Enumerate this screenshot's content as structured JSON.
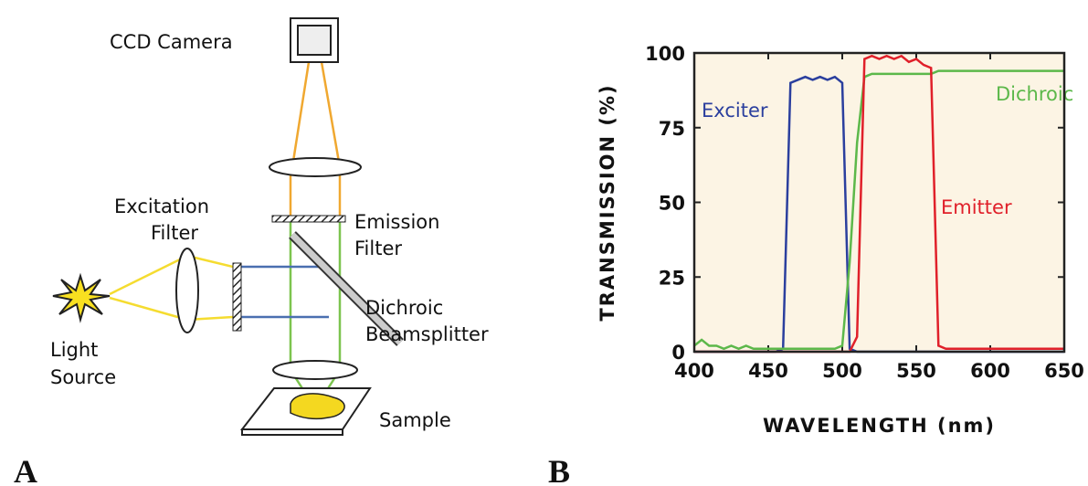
{
  "diagram": {
    "camera_label": "CCD Camera",
    "excitation_filter_label": [
      "Excitation",
      "Filter"
    ],
    "emission_filter_label": [
      "Emission",
      "Filter"
    ],
    "beamsplitter_label": [
      "Dichroic",
      "Beamsplitter"
    ],
    "light_source_label": [
      "Light",
      "Source"
    ],
    "sample_label": "Sample",
    "panel_label": "A"
  },
  "chart_data": {
    "type": "line",
    "panel_label": "B",
    "x_label": "WAVELENGTH (nm)",
    "y_label": "TRANSMISSION (%)",
    "x": [
      400,
      405,
      410,
      415,
      420,
      425,
      430,
      435,
      440,
      445,
      450,
      455,
      460,
      465,
      470,
      475,
      480,
      485,
      490,
      495,
      500,
      505,
      510,
      515,
      520,
      525,
      530,
      535,
      540,
      545,
      550,
      555,
      560,
      565,
      570,
      575,
      580,
      585,
      590,
      595,
      600,
      605,
      610,
      615,
      620,
      625,
      630,
      635,
      640,
      645,
      650
    ],
    "series": [
      {
        "name": "Exciter",
        "color": "#2b3f9e",
        "values": [
          0,
          0,
          0,
          0,
          0,
          0,
          0,
          0,
          0,
          0,
          0,
          0,
          1,
          90,
          91,
          92,
          91,
          92,
          91,
          92,
          90,
          1,
          0,
          0,
          0,
          0,
          0,
          0,
          0,
          0,
          0,
          0,
          0,
          0,
          0,
          0,
          0,
          0,
          0,
          0,
          0,
          0,
          0,
          0,
          0,
          0,
          0,
          0,
          0,
          0,
          0
        ]
      },
      {
        "name": "Dichroic",
        "color": "#5cb84a",
        "values": [
          2,
          4,
          2,
          2,
          1,
          2,
          1,
          2,
          1,
          1,
          1,
          1,
          1,
          1,
          1,
          1,
          1,
          1,
          1,
          1,
          2,
          30,
          70,
          92,
          93,
          93,
          93,
          93,
          93,
          93,
          93,
          93,
          93,
          94,
          94,
          94,
          94,
          94,
          94,
          94,
          94,
          94,
          94,
          94,
          94,
          94,
          94,
          94,
          94,
          94,
          94
        ]
      },
      {
        "name": "Emitter",
        "color": "#e0202a",
        "values": [
          0,
          0,
          0,
          0,
          0,
          0,
          0,
          0,
          0,
          0,
          0,
          0,
          0,
          0,
          0,
          0,
          0,
          0,
          0,
          0,
          0,
          0,
          5,
          98,
          99,
          98,
          99,
          98,
          99,
          97,
          98,
          96,
          95,
          2,
          1,
          1,
          1,
          1,
          1,
          1,
          1,
          1,
          1,
          1,
          1,
          1,
          1,
          1,
          1,
          1,
          1
        ]
      }
    ],
    "xlim": [
      400,
      650
    ],
    "ylim": [
      0,
      100
    ],
    "xticks": [
      400,
      450,
      500,
      550,
      600,
      650
    ],
    "yticks": [
      0,
      25,
      50,
      75,
      100
    ],
    "background": "#fcf4e4"
  }
}
